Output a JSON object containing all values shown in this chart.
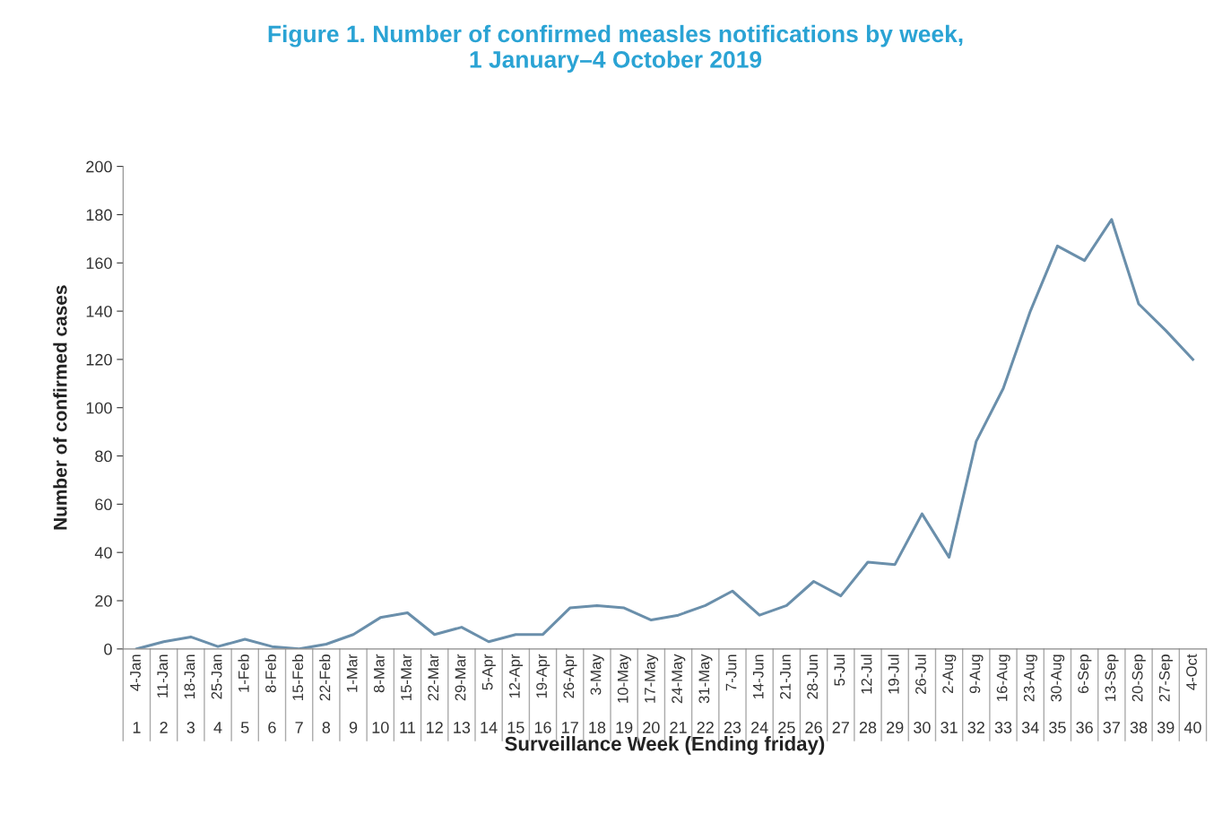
{
  "chart_data": {
    "type": "line",
    "title": "Figure 1. Number of confirmed measles notifications by week,\n1 January–4 October 2019",
    "xlabel": "Surveillance Week (Ending friday)",
    "ylabel": "Number of confirmed cases",
    "categories": [
      "4-Jan\n1",
      "11-Jan\n2",
      "18-Jan\n3",
      "25-Jan\n4",
      "1-Feb\n5",
      "8-Feb\n6",
      "15-Feb\n7",
      "22-Feb\n8",
      "1-Mar\n9",
      "8-Mar\n10",
      "15-Mar\n11",
      "22-Mar\n12",
      "29-Mar\n13",
      "5-Apr\n14",
      "12-Apr\n15",
      "19-Apr\n16",
      "26-Apr\n17",
      "3-May\n18",
      "10-May\n19",
      "17-May\n20",
      "24-May\n21",
      "31-May\n22",
      "7-Jun\n23",
      "14-Jun\n24",
      "21-Jun\n25",
      "28-Jun\n26",
      "5-Jul\n27",
      "12-Jul\n28",
      "19-Jul\n29",
      "26-Jul\n30",
      "2-Aug\n31",
      "9-Aug\n32",
      "16-Aug\n33",
      "23-Aug\n34",
      "30-Aug\n35",
      "6-Sep\n36",
      "13-Sep\n37",
      "20-Sep\n38",
      "27-Sep\n39",
      "4-Oct\n40"
    ],
    "series": [
      {
        "color": "#6a8fab",
        "values": [
          0,
          3,
          5,
          1,
          4,
          1,
          0,
          2,
          6,
          13,
          15,
          6,
          9,
          3,
          6,
          6,
          17,
          18,
          17,
          12,
          14,
          18,
          24,
          14,
          18,
          28,
          22,
          36,
          35,
          56,
          38,
          86,
          108,
          140,
          167,
          161,
          178,
          143,
          132,
          120
        ]
      }
    ],
    "ylim": [
      0,
      200
    ],
    "yticks": [
      0,
      20,
      40,
      60,
      80,
      100,
      120,
      140,
      160,
      180,
      200
    ],
    "grid": false,
    "legend": false,
    "marker": "none",
    "line_style": "solid"
  }
}
